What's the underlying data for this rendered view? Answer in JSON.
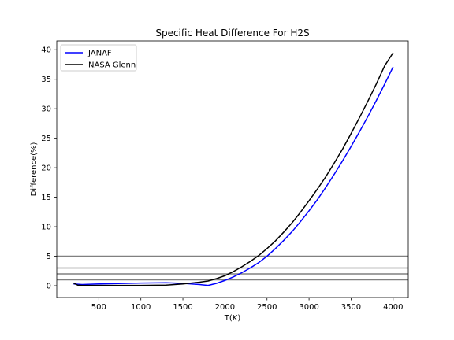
{
  "chart_data": {
    "type": "line",
    "title": "Specific Heat Difference For H2S",
    "xlabel": "T(K)",
    "ylabel": "Difference(%)",
    "xlim": [
      0,
      4180
    ],
    "ylim": [
      -2,
      41.5
    ],
    "xticks": [
      500,
      1000,
      1500,
      2000,
      2500,
      3000,
      3500,
      4000
    ],
    "yticks": [
      0,
      5,
      10,
      15,
      20,
      25,
      30,
      35,
      40
    ],
    "grid": false,
    "legend_position": "upper-left",
    "series": [
      {
        "name": "JANAF",
        "color": "#0000ff",
        "x": [
          200,
          250,
          300,
          500,
          1000,
          1300,
          1500,
          1700,
          1800,
          1900,
          2000,
          2100,
          2200,
          2300,
          2400,
          2500,
          2600,
          2700,
          2800,
          2900,
          3000,
          3100,
          3200,
          3300,
          3400,
          3500,
          3600,
          3700,
          3800,
          3900,
          4000
        ],
        "y": [
          0.3,
          0.25,
          0.2,
          0.3,
          0.45,
          0.5,
          0.4,
          0.2,
          0.05,
          0.4,
          0.9,
          1.5,
          2.2,
          3.0,
          3.9,
          5.0,
          6.3,
          7.7,
          9.2,
          10.9,
          12.7,
          14.6,
          16.7,
          18.9,
          21.2,
          23.6,
          26.1,
          28.7,
          31.4,
          34.2,
          37.1
        ]
      },
      {
        "name": "NASA Glenn",
        "color": "#000000",
        "x": [
          200,
          250,
          300,
          500,
          1000,
          1300,
          1500,
          1700,
          1800,
          1900,
          2000,
          2100,
          2200,
          2300,
          2400,
          2500,
          2600,
          2700,
          2800,
          2900,
          3000,
          3100,
          3200,
          3300,
          3400,
          3500,
          3600,
          3700,
          3800,
          3900,
          4000
        ],
        "y": [
          0.45,
          0.1,
          0.05,
          0.05,
          0.05,
          0.1,
          0.3,
          0.6,
          0.8,
          1.2,
          1.7,
          2.4,
          3.2,
          4.1,
          5.1,
          6.3,
          7.6,
          9.1,
          10.7,
          12.5,
          14.4,
          16.4,
          18.5,
          20.8,
          23.2,
          25.8,
          28.5,
          31.3,
          34.2,
          37.3,
          39.5
        ]
      }
    ],
    "reference_lines": [
      {
        "y": 1,
        "color": "#808080"
      },
      {
        "y": 2,
        "color": "#808080"
      },
      {
        "y": 3,
        "color": "#808080"
      },
      {
        "y": 5,
        "color": "#808080"
      }
    ]
  }
}
